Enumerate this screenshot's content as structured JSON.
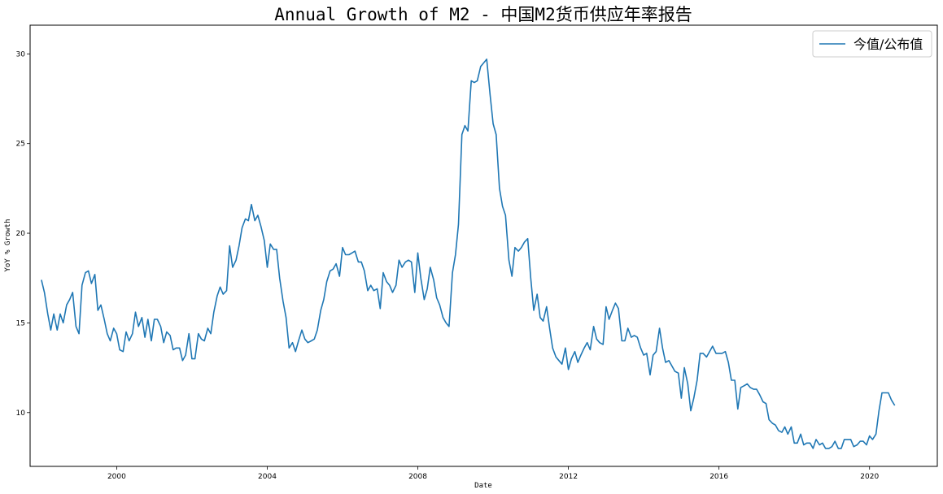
{
  "chart_data": {
    "type": "line",
    "title": "Annual Growth of M2 - 中国M2货币供应年率报告",
    "xlabel": "Date",
    "ylabel": "YoY % Growth",
    "x_ticks": [
      "2000",
      "2004",
      "2008",
      "2012",
      "2016",
      "2020"
    ],
    "y_ticks": [
      10,
      15,
      20,
      25,
      30
    ],
    "xlim": [
      1997.7,
      2021.8
    ],
    "ylim": [
      7.0,
      31.6
    ],
    "grid": false,
    "legend_position": "top-right",
    "series": [
      {
        "name": "今值/公布值",
        "color": "#1f77b4",
        "x": [
          1998.0,
          1998.08,
          1998.17,
          1998.25,
          1998.33,
          1998.42,
          1998.5,
          1998.58,
          1998.67,
          1998.75,
          1998.83,
          1998.92,
          1999.0,
          1999.08,
          1999.17,
          1999.25,
          1999.33,
          1999.42,
          1999.5,
          1999.58,
          1999.67,
          1999.75,
          1999.83,
          1999.92,
          2000.0,
          2000.08,
          2000.17,
          2000.25,
          2000.33,
          2000.42,
          2000.5,
          2000.58,
          2000.67,
          2000.75,
          2000.83,
          2000.92,
          2001.0,
          2001.08,
          2001.17,
          2001.25,
          2001.33,
          2001.42,
          2001.5,
          2001.58,
          2001.67,
          2001.75,
          2001.83,
          2001.92,
          2002.0,
          2002.08,
          2002.17,
          2002.25,
          2002.33,
          2002.42,
          2002.5,
          2002.58,
          2002.67,
          2002.75,
          2002.83,
          2002.92,
          2003.0,
          2003.08,
          2003.17,
          2003.25,
          2003.33,
          2003.42,
          2003.5,
          2003.58,
          2003.67,
          2003.75,
          2003.83,
          2003.92,
          2004.0,
          2004.08,
          2004.17,
          2004.25,
          2004.33,
          2004.42,
          2004.5,
          2004.58,
          2004.67,
          2004.75,
          2004.83,
          2004.92,
          2005.0,
          2005.08,
          2005.17,
          2005.25,
          2005.33,
          2005.42,
          2005.5,
          2005.58,
          2005.67,
          2005.75,
          2005.83,
          2005.92,
          2006.0,
          2006.08,
          2006.17,
          2006.25,
          2006.33,
          2006.42,
          2006.5,
          2006.58,
          2006.67,
          2006.75,
          2006.83,
          2006.92,
          2007.0,
          2007.08,
          2007.17,
          2007.25,
          2007.33,
          2007.42,
          2007.5,
          2007.58,
          2007.67,
          2007.75,
          2007.83,
          2007.92,
          2008.0,
          2008.08,
          2008.17,
          2008.25,
          2008.33,
          2008.42,
          2008.5,
          2008.58,
          2008.67,
          2008.75,
          2008.83,
          2008.92,
          2009.0,
          2009.08,
          2009.17,
          2009.25,
          2009.33,
          2009.42,
          2009.5,
          2009.58,
          2009.67,
          2009.75,
          2009.83,
          2009.92,
          2010.0,
          2010.08,
          2010.17,
          2010.25,
          2010.33,
          2010.42,
          2010.5,
          2010.58,
          2010.67,
          2010.75,
          2010.83,
          2010.92,
          2011.0,
          2011.08,
          2011.17,
          2011.25,
          2011.33,
          2011.42,
          2011.5,
          2011.58,
          2011.67,
          2011.75,
          2011.83,
          2011.92,
          2012.0,
          2012.08,
          2012.17,
          2012.25,
          2012.33,
          2012.42,
          2012.5,
          2012.58,
          2012.67,
          2012.75,
          2012.83,
          2012.92,
          2013.0,
          2013.08,
          2013.17,
          2013.25,
          2013.33,
          2013.42,
          2013.5,
          2013.58,
          2013.67,
          2013.75,
          2013.83,
          2013.92,
          2014.0,
          2014.08,
          2014.17,
          2014.25,
          2014.33,
          2014.42,
          2014.5,
          2014.58,
          2014.67,
          2014.75,
          2014.83,
          2014.92,
          2015.0,
          2015.08,
          2015.17,
          2015.25,
          2015.33,
          2015.42,
          2015.5,
          2015.58,
          2015.67,
          2015.75,
          2015.83,
          2015.92,
          2016.0,
          2016.08,
          2016.17,
          2016.25,
          2016.33,
          2016.42,
          2016.5,
          2016.58,
          2016.67,
          2016.75,
          2016.83,
          2016.92,
          2017.0,
          2017.08,
          2017.17,
          2017.25,
          2017.33,
          2017.42,
          2017.5,
          2017.58,
          2017.67,
          2017.75,
          2017.83,
          2017.92,
          2018.0,
          2018.08,
          2018.17,
          2018.25,
          2018.33,
          2018.42,
          2018.5,
          2018.58,
          2018.67,
          2018.75,
          2018.83,
          2018.92,
          2019.0,
          2019.08,
          2019.17,
          2019.25,
          2019.33,
          2019.42,
          2019.5,
          2019.58,
          2019.67,
          2019.75,
          2019.83,
          2019.92,
          2020.0,
          2020.08,
          2020.17,
          2020.25,
          2020.33,
          2020.42,
          2020.5,
          2020.58,
          2020.67
        ],
        "values": [
          17.4,
          16.7,
          15.5,
          14.6,
          15.5,
          14.6,
          15.5,
          15.0,
          16.0,
          16.3,
          16.7,
          14.8,
          14.4,
          17.1,
          17.8,
          17.9,
          17.2,
          17.7,
          15.7,
          16.0,
          15.2,
          14.4,
          14.0,
          14.7,
          14.4,
          13.5,
          13.4,
          14.5,
          14.0,
          14.4,
          15.6,
          14.8,
          15.3,
          14.2,
          15.2,
          14.0,
          15.2,
          15.2,
          14.8,
          13.9,
          14.5,
          14.3,
          13.5,
          13.6,
          13.6,
          12.9,
          13.2,
          14.4,
          13.0,
          13.0,
          14.4,
          14.1,
          14.0,
          14.7,
          14.4,
          15.6,
          16.5,
          17.0,
          16.6,
          16.8,
          19.3,
          18.1,
          18.5,
          19.3,
          20.3,
          20.8,
          20.7,
          21.6,
          20.7,
          21.0,
          20.4,
          19.6,
          18.1,
          19.4,
          19.1,
          19.1,
          17.5,
          16.2,
          15.3,
          13.6,
          13.9,
          13.4,
          14.0,
          14.6,
          14.1,
          13.9,
          14.0,
          14.1,
          14.6,
          15.7,
          16.3,
          17.3,
          17.9,
          18.0,
          18.3,
          17.6,
          19.2,
          18.8,
          18.8,
          18.9,
          19.0,
          18.4,
          18.4,
          17.9,
          16.8,
          17.1,
          16.8,
          16.9,
          15.8,
          17.8,
          17.3,
          17.1,
          16.7,
          17.1,
          18.5,
          18.1,
          18.4,
          18.5,
          18.4,
          16.7,
          18.9,
          17.5,
          16.3,
          16.9,
          18.1,
          17.4,
          16.4,
          16.0,
          15.3,
          15.0,
          14.8,
          17.8,
          18.8,
          20.5,
          25.5,
          26.0,
          25.7,
          28.5,
          28.4,
          28.5,
          29.3,
          29.5,
          29.7,
          27.7,
          26.1,
          25.5,
          22.5,
          21.5,
          21.0,
          18.5,
          17.6,
          19.2,
          19.0,
          19.2,
          19.5,
          19.7,
          17.5,
          15.7,
          16.6,
          15.3,
          15.1,
          15.9,
          14.7,
          13.6,
          13.1,
          12.9,
          12.7,
          13.6,
          12.4,
          13.0,
          13.4,
          12.8,
          13.2,
          13.6,
          13.9,
          13.5,
          14.8,
          14.1,
          13.9,
          13.8,
          15.9,
          15.2,
          15.7,
          16.1,
          15.8,
          14.0,
          14.0,
          14.7,
          14.2,
          14.3,
          14.2,
          13.6,
          13.2,
          13.3,
          12.1,
          13.2,
          13.4,
          14.7,
          13.6,
          12.8,
          12.9,
          12.6,
          12.3,
          12.2,
          10.8,
          12.5,
          11.6,
          10.1,
          10.8,
          11.8,
          13.3,
          13.3,
          13.1,
          13.4,
          13.7,
          13.3,
          13.3,
          13.3,
          13.4,
          12.8,
          11.8,
          11.8,
          10.2,
          11.4,
          11.5,
          11.6,
          11.4,
          11.3,
          11.3,
          11.0,
          10.6,
          10.5,
          9.6,
          9.4,
          9.3,
          9.0,
          8.9,
          9.2,
          8.8,
          9.2,
          8.3,
          8.3,
          8.8,
          8.2,
          8.3,
          8.3,
          8.0,
          8.5,
          8.2,
          8.3,
          8.0,
          8.0,
          8.1,
          8.4,
          8.0,
          8.0,
          8.5,
          8.5,
          8.5,
          8.1,
          8.2,
          8.4,
          8.4,
          8.2,
          8.7,
          8.5,
          8.8,
          10.1,
          11.1,
          11.1,
          11.1,
          10.7,
          10.4
        ]
      }
    ]
  }
}
